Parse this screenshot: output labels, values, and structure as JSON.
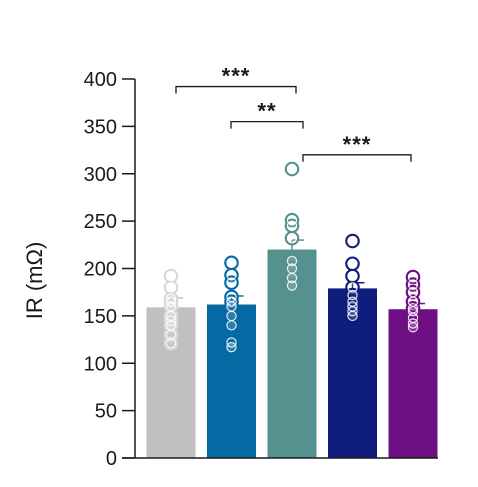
{
  "chart_data": {
    "type": "bar",
    "title": "",
    "xlabel": "",
    "ylabel": "IR (mΩ)",
    "ylim": [
      0,
      400
    ],
    "yticks": [
      0,
      50,
      100,
      150,
      200,
      250,
      300,
      350,
      400
    ],
    "grid": false,
    "legend": "none",
    "groups": [
      {
        "color": "#c0c0c0",
        "mean": 159,
        "error": 10,
        "points": [
          192,
          180,
          168,
          165,
          160,
          150,
          145,
          140,
          130,
          121
        ]
      },
      {
        "color": "#0569a3",
        "mean": 162,
        "error": 9,
        "points": [
          206,
          193,
          185,
          170,
          165,
          160,
          150,
          140,
          122,
          117
        ]
      },
      {
        "color": "#55918e",
        "mean": 220,
        "error": 10,
        "points": [
          305,
          251,
          245,
          232,
          208,
          200,
          190,
          182
        ]
      },
      {
        "color": "#0f1d7c",
        "mean": 179,
        "error": 6,
        "points": [
          229,
          205,
          192,
          180,
          172,
          165,
          160,
          155,
          150
        ]
      },
      {
        "color": "#6e0f84",
        "mean": 157,
        "error": 6,
        "points": [
          191,
          183,
          175,
          165,
          158,
          155,
          148,
          142,
          138
        ]
      }
    ],
    "significance": [
      {
        "from": 0,
        "to": 2,
        "y": 392,
        "label": "***"
      },
      {
        "from": 1,
        "to": 2,
        "y": 355,
        "label": "**"
      },
      {
        "from": 2,
        "to": 4,
        "y": 320,
        "label": "***"
      }
    ]
  }
}
